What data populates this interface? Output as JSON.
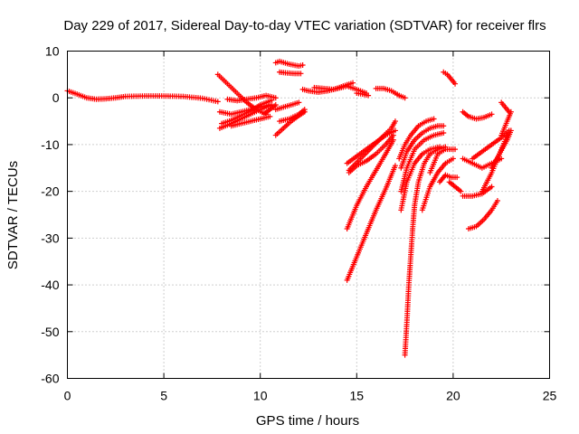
{
  "chart_data": {
    "type": "scatter",
    "title": "Day 229 of 2017, Sidereal Day-to-day VTEC variation (SDTVAR) for receiver flrs",
    "xlabel": "GPS time / hours",
    "ylabel": "SDTVAR / TECUs",
    "xlim": [
      0,
      25
    ],
    "ylim": [
      -60,
      10
    ],
    "xticks": [
      0,
      5,
      10,
      15,
      20,
      25
    ],
    "yticks": [
      10,
      0,
      -10,
      -20,
      -30,
      -40,
      -50,
      -60
    ],
    "grid": true,
    "marker": "+",
    "color": "#ff0000",
    "series": [
      {
        "name": "s1",
        "x": [
          0,
          0.5,
          1,
          1.5,
          2,
          2.5,
          3,
          4,
          5,
          6,
          7,
          7.8
        ],
        "y": [
          1.5,
          0.8,
          0,
          -0.3,
          -0.2,
          0,
          0.3,
          0.4,
          0.4,
          0.3,
          -0.1,
          -0.8
        ]
      },
      {
        "name": "s2",
        "x": [
          7.8,
          8.3,
          8.8,
          9.3,
          9.8,
          10.3
        ],
        "y": [
          5,
          3,
          1,
          -1,
          -2.5,
          -3.5
        ]
      },
      {
        "name": "s3",
        "x": [
          7.9,
          8.5,
          9,
          9.5,
          10,
          10.5
        ],
        "y": [
          -3,
          -3.5,
          -3,
          -2.5,
          -2,
          -1.5
        ]
      },
      {
        "name": "s4",
        "x": [
          7.9,
          8.5,
          9,
          9.5,
          10,
          10.6
        ],
        "y": [
          -6.5,
          -5.5,
          -4.5,
          -3.5,
          -2.5,
          -1.5
        ]
      },
      {
        "name": "s5",
        "x": [
          8,
          8.5,
          9,
          9.5,
          10,
          10.6
        ],
        "y": [
          -5.5,
          -4.8,
          -3.8,
          -2.8,
          -1.5,
          -0.5
        ]
      },
      {
        "name": "s6",
        "x": [
          8.3,
          8.8,
          9.3,
          9.8,
          10.3,
          10.8
        ],
        "y": [
          -0.3,
          -0.6,
          -0.3,
          0,
          0.5,
          0
        ]
      },
      {
        "name": "s7",
        "x": [
          8.5,
          9,
          9.5,
          10,
          10.5
        ],
        "y": [
          -6,
          -5.5,
          -5,
          -4.5,
          -4
        ]
      },
      {
        "name": "s8",
        "x": [
          10.2,
          10.5,
          10.8
        ],
        "y": [
          -3.5,
          -2.5,
          -1.5
        ]
      },
      {
        "name": "s9",
        "x": [
          10.8,
          11,
          11.5,
          12,
          12.2
        ],
        "y": [
          7.5,
          7.8,
          7.2,
          6.8,
          7
        ]
      },
      {
        "name": "s10",
        "x": [
          11,
          11.4,
          11.8,
          12.1
        ],
        "y": [
          5.5,
          5.3,
          5.2,
          5.2
        ]
      },
      {
        "name": "s11",
        "x": [
          10.8,
          11.2,
          11.6,
          12
        ],
        "y": [
          -2.5,
          -2,
          -1.5,
          -1
        ]
      },
      {
        "name": "s12",
        "x": [
          11,
          11.5,
          12,
          12.3
        ],
        "y": [
          -5,
          -4.5,
          -3.5,
          -2.5
        ]
      },
      {
        "name": "s13",
        "x": [
          10.8,
          11.2,
          11.6,
          12,
          12.3
        ],
        "y": [
          -8,
          -6.5,
          -5,
          -3.8,
          -3
        ]
      },
      {
        "name": "s14",
        "x": [
          12.2,
          12.5,
          13,
          13.5,
          14,
          14.5
        ],
        "y": [
          1.8,
          1.5,
          1.2,
          1.5,
          2,
          2.8
        ]
      },
      {
        "name": "s15",
        "x": [
          12.8,
          13.3,
          13.8,
          14.3,
          14.8
        ],
        "y": [
          2.2,
          2,
          1.8,
          2.5,
          3.2
        ]
      },
      {
        "name": "s16",
        "x": [
          14,
          14.5,
          15,
          15.5
        ],
        "y": [
          2,
          2.5,
          1.8,
          1
        ]
      },
      {
        "name": "s17",
        "x": [
          15,
          15.3,
          15.6
        ],
        "y": [
          1,
          0.8,
          0.5
        ]
      },
      {
        "name": "s18",
        "x": [
          16,
          16.4,
          16.8,
          17.2
        ],
        "y": [
          2,
          2,
          1.5,
          0.5
        ]
      },
      {
        "name": "s19",
        "x": [
          17,
          17.2,
          17.5
        ],
        "y": [
          1,
          0.5,
          0
        ]
      },
      {
        "name": "s20",
        "x": [
          19.5,
          19.7,
          19.9,
          20.1
        ],
        "y": [
          5.5,
          5,
          4,
          3
        ]
      },
      {
        "name": "s21",
        "x": [
          20.5,
          20.8,
          21.2,
          21.6,
          22
        ],
        "y": [
          -3,
          -4,
          -4.5,
          -4.2,
          -3.5
        ]
      },
      {
        "name": "s22",
        "x": [
          22.5,
          22.7,
          22.9
        ],
        "y": [
          -1,
          -2,
          -3
        ]
      },
      {
        "name": "s23",
        "x": [
          14.5,
          15,
          15.5,
          16,
          16.5,
          17
        ],
        "y": [
          -14,
          -12.5,
          -11,
          -9.5,
          -8,
          -7
        ]
      },
      {
        "name": "s24",
        "x": [
          14.6,
          15.2,
          15.8,
          16.3,
          16.8,
          17
        ],
        "y": [
          -15.5,
          -13,
          -10.5,
          -8.5,
          -6.5,
          -5
        ]
      },
      {
        "name": "s25",
        "x": [
          14.6,
          15,
          15.5,
          16,
          16.5,
          16.9
        ],
        "y": [
          -16,
          -14.5,
          -13.5,
          -12,
          -10,
          -8
        ]
      },
      {
        "name": "s26",
        "x": [
          14.5,
          15,
          15.5,
          16,
          16.5,
          16.9
        ],
        "y": [
          -28,
          -23,
          -19,
          -15.5,
          -12,
          -9
        ]
      },
      {
        "name": "s27",
        "x": [
          14.5,
          15,
          15.5,
          16,
          16.5,
          17
        ],
        "y": [
          -39,
          -34,
          -29,
          -24,
          -19.5,
          -14.5
        ]
      },
      {
        "name": "s28",
        "x": [
          17.2,
          17.5,
          17.8,
          18.2,
          18.6,
          19
        ],
        "y": [
          -13,
          -10,
          -8,
          -6,
          -5,
          -4.5
        ]
      },
      {
        "name": "s29",
        "x": [
          17.3,
          17.6,
          18,
          18.4,
          18.8,
          19.2,
          19.5
        ],
        "y": [
          -15,
          -11.5,
          -9,
          -7.5,
          -6.5,
          -6,
          -6
        ]
      },
      {
        "name": "s30",
        "x": [
          17.3,
          17.6,
          18,
          18.5,
          19,
          19.5
        ],
        "y": [
          -20,
          -15,
          -11,
          -9,
          -8,
          -7.5
        ]
      },
      {
        "name": "s31",
        "x": [
          17.3,
          17.6,
          18,
          18.4,
          18.8,
          19.3
        ],
        "y": [
          -24,
          -18,
          -14,
          -12,
          -11,
          -10.5
        ]
      },
      {
        "name": "s32",
        "x": [
          17.5,
          17.6,
          17.7,
          17.8,
          17.9,
          18,
          18.2,
          18.5,
          18.8,
          19.2,
          19.6
        ],
        "y": [
          -55,
          -48,
          -40,
          -34,
          -28,
          -23,
          -18,
          -14,
          -12,
          -11,
          -10.5
        ]
      },
      {
        "name": "s33",
        "x": [
          18.4,
          18.8,
          19.2,
          19.6,
          20
        ],
        "y": [
          -24,
          -19,
          -16,
          -14,
          -13
        ]
      },
      {
        "name": "s34",
        "x": [
          18.8,
          19.2,
          19.6,
          20.1
        ],
        "y": [
          -16,
          -12,
          -11,
          -11
        ]
      },
      {
        "name": "s35",
        "x": [
          19.3,
          19.6,
          19.9,
          20.2
        ],
        "y": [
          -18,
          -16.5,
          -17,
          -17
        ]
      },
      {
        "name": "s36",
        "x": [
          19.8,
          20.1,
          20.4
        ],
        "y": [
          -18,
          -19,
          -20
        ]
      },
      {
        "name": "s37",
        "x": [
          20.5,
          21,
          21.5,
          22,
          22.5
        ],
        "y": [
          -13,
          -14,
          -15,
          -14,
          -13
        ]
      },
      {
        "name": "s38",
        "x": [
          20.5,
          21,
          21.5,
          22
        ],
        "y": [
          -21,
          -21,
          -20.5,
          -19
        ]
      },
      {
        "name": "s39",
        "x": [
          20.8,
          21.2,
          21.6,
          22,
          22.3
        ],
        "y": [
          -28,
          -27.5,
          -26,
          -24,
          -22
        ]
      },
      {
        "name": "s40",
        "x": [
          21.5,
          22,
          22.4,
          22.8
        ],
        "y": [
          -20,
          -16,
          -12,
          -8
        ]
      },
      {
        "name": "s41",
        "x": [
          22,
          22.4,
          22.8,
          23
        ],
        "y": [
          -15,
          -12,
          -9,
          -7
        ]
      },
      {
        "name": "s42",
        "x": [
          22.5,
          22.8,
          23
        ],
        "y": [
          -8,
          -5,
          -3
        ]
      },
      {
        "name": "s43",
        "x": [
          21,
          21.5,
          22,
          22.5,
          22.9
        ],
        "y": [
          -13,
          -11.5,
          -10,
          -8.5,
          -7
        ]
      }
    ]
  }
}
